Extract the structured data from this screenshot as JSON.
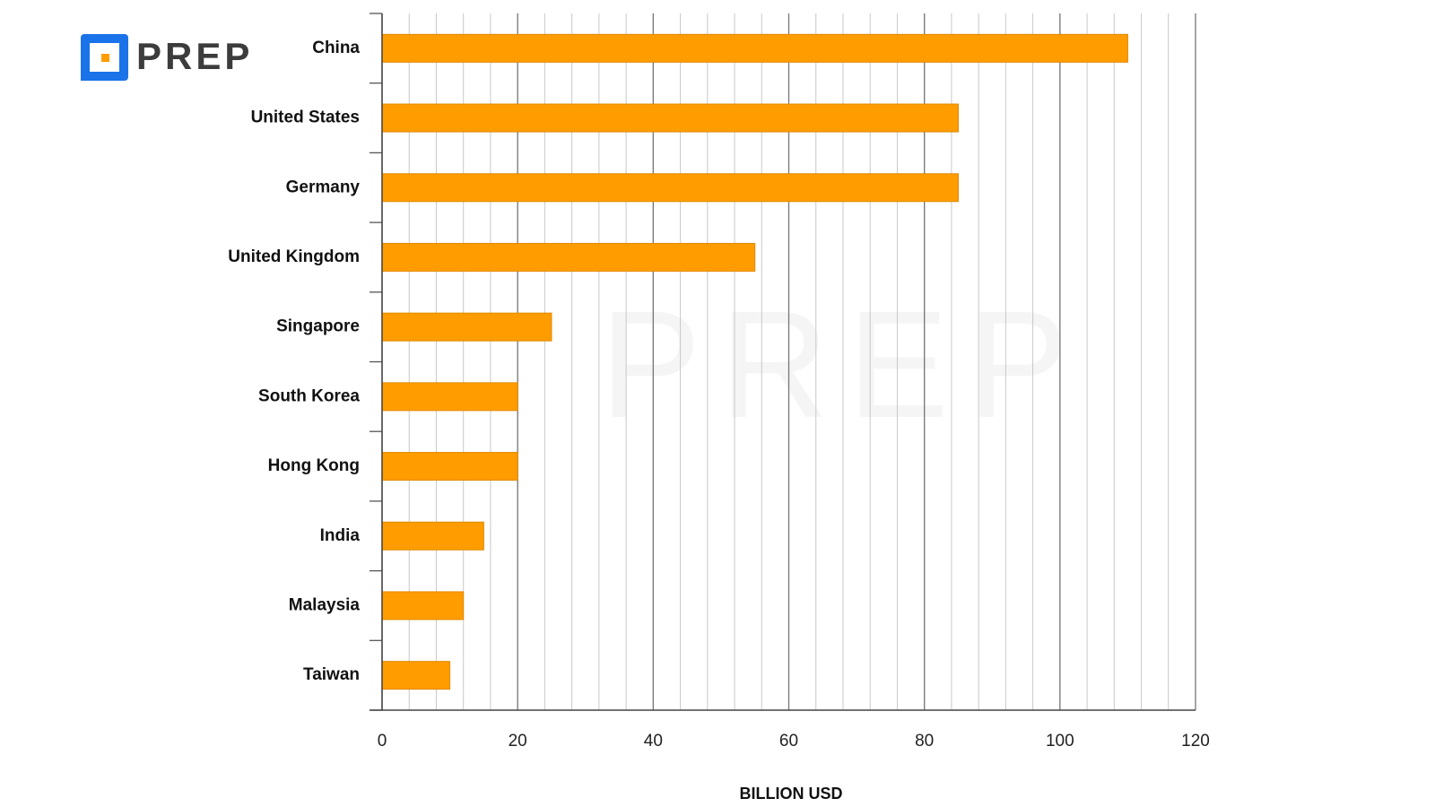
{
  "logo": "PREP",
  "chart_data": {
    "type": "hbar",
    "x_label": "BILLION USD",
    "categories": [
      "China",
      "United States",
      "Germany",
      "United Kingdom",
      "Singapore",
      "South Korea",
      "Hong Kong",
      "India",
      "Malaysia",
      "Taiwan"
    ],
    "values": [
      110,
      85,
      85,
      55,
      25,
      20,
      20,
      15,
      12,
      10
    ],
    "color": "#ff9c00",
    "xlim": [
      0,
      120
    ],
    "xticks": [
      0,
      20,
      40,
      60,
      80,
      100,
      120
    ],
    "minor_grid_step": 4,
    "grid": true
  }
}
